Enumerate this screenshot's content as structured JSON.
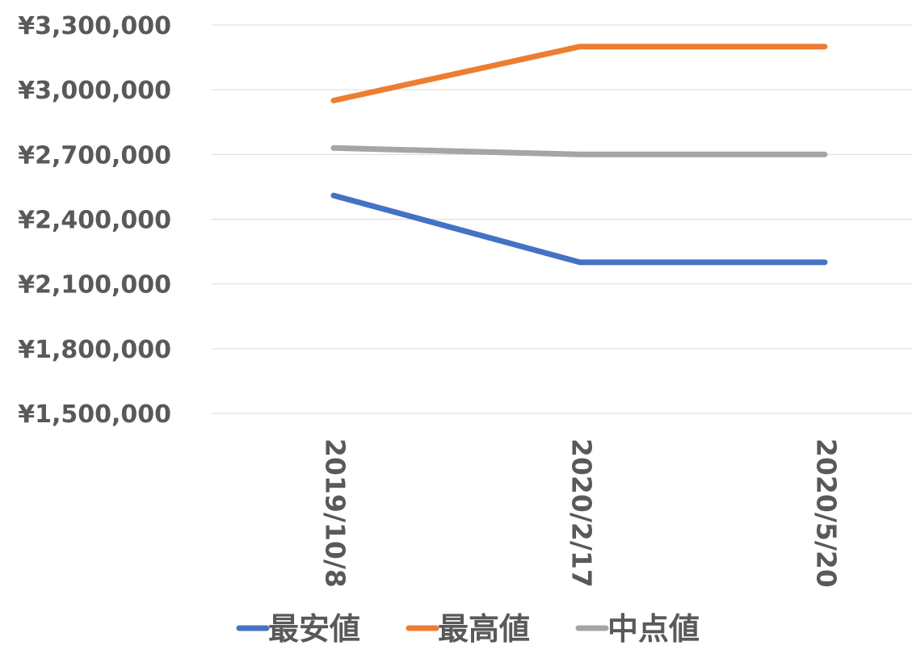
{
  "chart_data": {
    "type": "line",
    "title": "",
    "xlabel": "",
    "ylabel": "",
    "categories": [
      "2019/10/8",
      "2020/2/17",
      "2020/5/20"
    ],
    "ylim": [
      1500000,
      3300000
    ],
    "y_ticks": [
      1500000,
      1800000,
      2100000,
      2400000,
      2700000,
      3000000,
      3300000
    ],
    "y_tick_labels": [
      "¥1,500,000",
      "¥1,800,000",
      "¥2,100,000",
      "¥2,400,000",
      "¥2,700,000",
      "¥3,000,000",
      "¥3,300,000"
    ],
    "grid": true,
    "legend_position": "bottom",
    "series": [
      {
        "name": "最安値",
        "color": "#4472C4",
        "values": [
          2510000,
          2200000,
          2200000
        ]
      },
      {
        "name": "最高値",
        "color": "#ED7D31",
        "values": [
          2950000,
          3200000,
          3200000
        ]
      },
      {
        "name": "中点値",
        "color": "#A5A5A5",
        "values": [
          2730000,
          2700000,
          2700000
        ]
      }
    ]
  }
}
